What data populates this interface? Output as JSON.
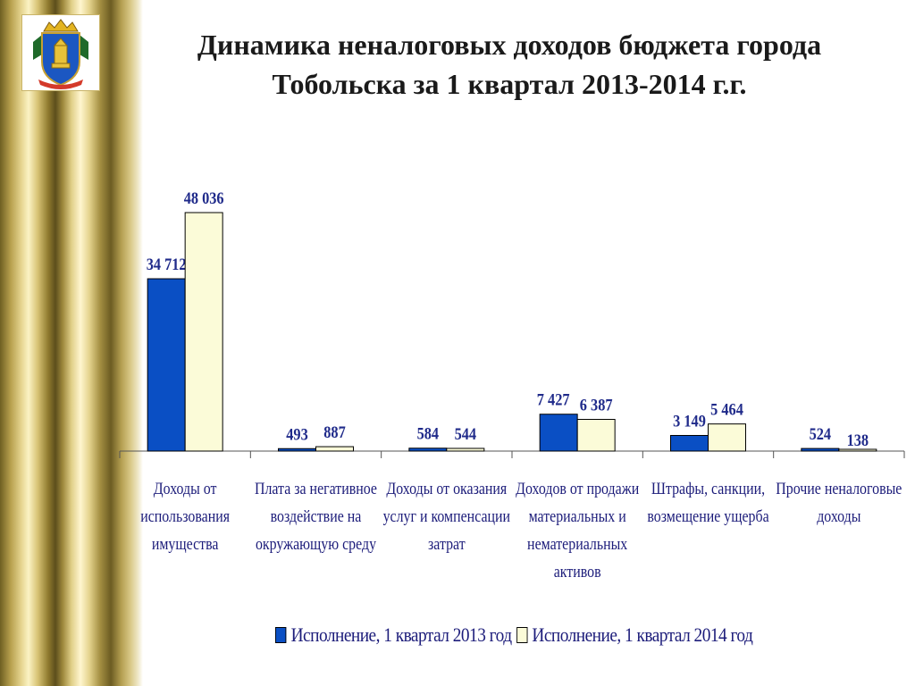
{
  "title_line1": "Динамика неналоговых доходов бюджета города",
  "title_line2": "Тобольска за 1 квартал 2013-2014 г.г.",
  "colors": {
    "series_2013": "#0a4fc4",
    "series_2014": "#fbfbd8",
    "text_blue": "#1c1c7a",
    "label_blue": "#1f2a8a"
  },
  "chart_data": {
    "type": "bar",
    "categories": [
      [
        "Доходы от",
        "использования",
        "имущества"
      ],
      [
        "Плата за негативное",
        "воздействие на",
        "окружающую среду"
      ],
      [
        "Доходы от оказания",
        "услуг и компенсации",
        "затрат"
      ],
      [
        "Доходов от продажи",
        "материальных и",
        "нематериальных",
        "активов"
      ],
      [
        "Штрафы, санкции,",
        "возмещение ущерба"
      ],
      [
        "Прочие неналоговые",
        "доходы"
      ]
    ],
    "series": [
      {
        "name": "Исполнение, 1 квартал 2013 год",
        "values": [
          34712,
          493,
          584,
          7427,
          3149,
          524
        ],
        "labels": [
          "34 712",
          "493",
          "584",
          "7 427",
          "3 149",
          "524"
        ]
      },
      {
        "name": "Исполнение, 1 квартал 2014 год",
        "values": [
          48036,
          887,
          544,
          6387,
          5464,
          138
        ],
        "labels": [
          "48 036",
          "887",
          "544",
          "6 387",
          "5 464",
          "138"
        ]
      }
    ],
    "ylim": [
      0,
      48036
    ],
    "grid": false,
    "legend_position": "bottom"
  }
}
